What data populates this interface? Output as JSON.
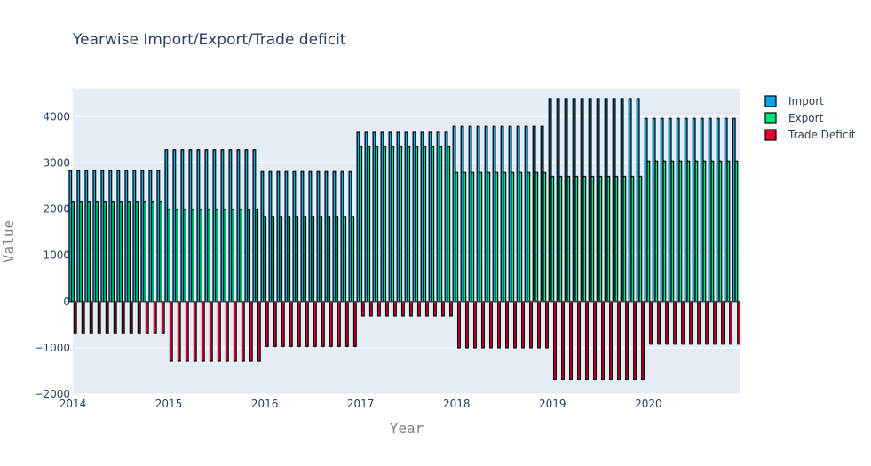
{
  "chart_data": {
    "type": "bar",
    "title": "Yearwise Import/Export/Trade deficit",
    "xlabel": "Year",
    "ylabel": "Value",
    "ylim": [
      -2000,
      4600
    ],
    "y_ticks": [
      -2000,
      -1000,
      0,
      1000,
      2000,
      3000,
      4000
    ],
    "y_tick_labels": [
      "−2000",
      "−1000",
      "0",
      "1000",
      "2000",
      "3000",
      "4000"
    ],
    "x_tick_labels": [
      "2014",
      "2015",
      "2016",
      "2017",
      "2018",
      "2019",
      "2020"
    ],
    "x_range_years": [
      2014,
      2020.95
    ],
    "months_per_year": 12,
    "years": [
      2014,
      2015,
      2016,
      2017,
      2018,
      2019,
      2020
    ],
    "legend_position": "top-right",
    "grid": true,
    "colors": {
      "plot_bg": "#e5ecf6",
      "grid": "#ffffff",
      "bar_outline": "#000000"
    },
    "series": [
      {
        "name": "Import",
        "color": "#00a8e8",
        "values": [
          2830,
          3280,
          2810,
          3660,
          3790,
          4390,
          3960
        ]
      },
      {
        "name": "Export",
        "color": "#00e676",
        "values": [
          2150,
          1990,
          1840,
          3350,
          2790,
          2710,
          3040
        ]
      },
      {
        "name": "Trade Deficit",
        "color": "#e3002c",
        "values": [
          -680,
          -1290,
          -970,
          -310,
          -1000,
          -1680,
          -920
        ]
      }
    ]
  }
}
